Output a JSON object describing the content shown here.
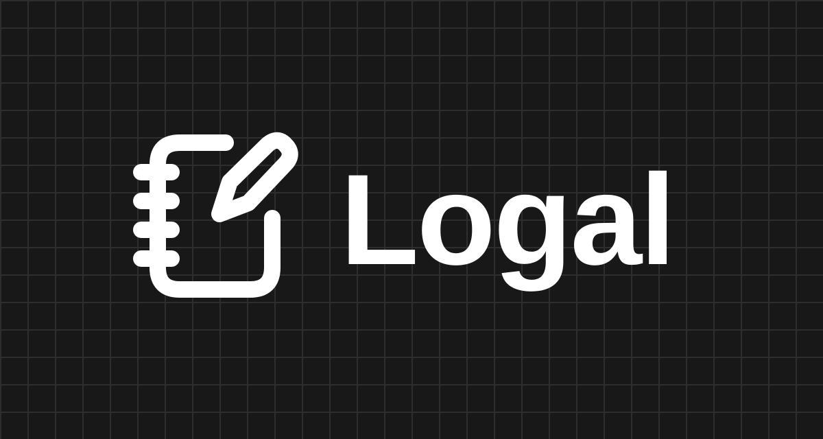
{
  "brand": {
    "name": "Logal",
    "icon": "notebook-pencil-icon",
    "text_color": "#ffffff",
    "background_color": "#181818",
    "grid_color": "#2e2e2e"
  }
}
